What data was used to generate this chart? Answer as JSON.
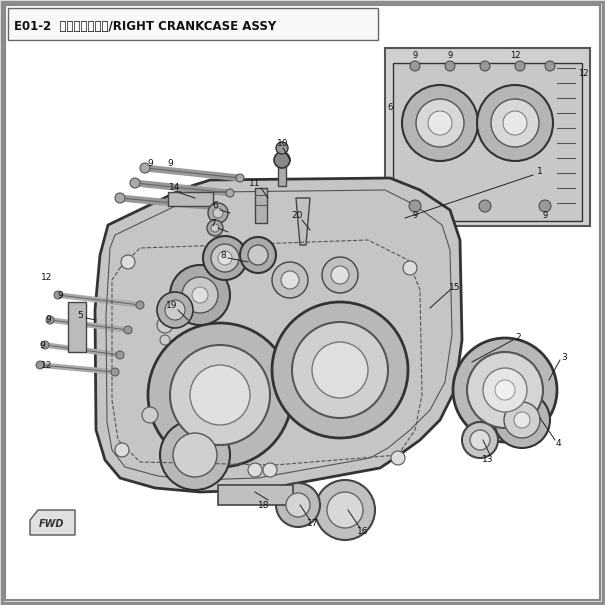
{
  "title": "E01-2  右曲轴算分总成/RIGHT CRANKCASE ASSY",
  "bg_color": "#d8d8d8",
  "inner_bg": "#e8e8e8",
  "fig_width": 6.05,
  "fig_height": 6.05,
  "dpi": 100,
  "label_fontsize": 6.5,
  "title_fontsize": 8.5,
  "line_color": "#222222",
  "gray_part": "#b0b0b0",
  "light_part": "#c8c8c8",
  "white_part": "#f0f0f0",
  "dark_line": "#111111"
}
